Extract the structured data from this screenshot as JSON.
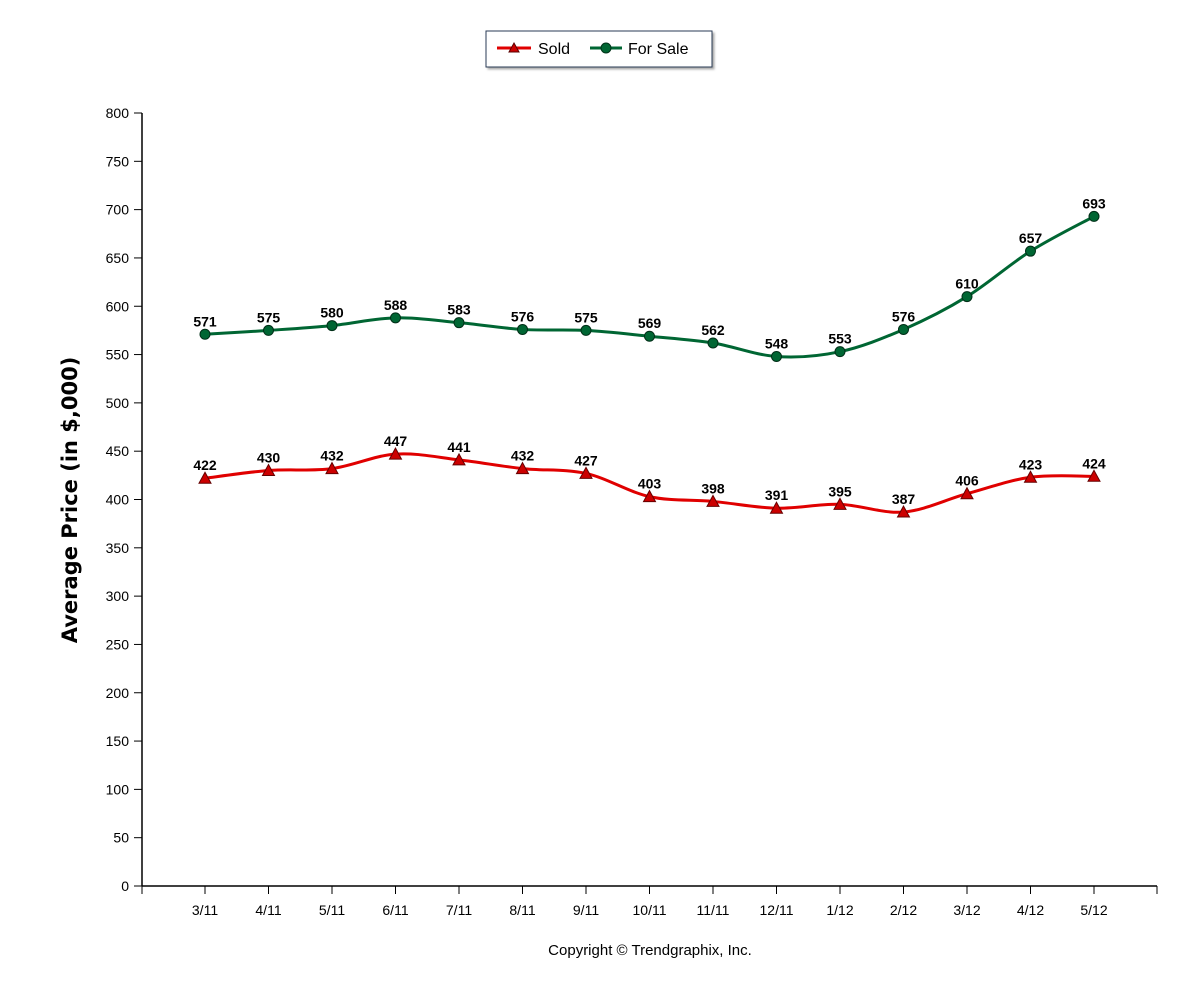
{
  "chart_data": {
    "type": "line",
    "categories": [
      "3/11",
      "4/11",
      "5/11",
      "6/11",
      "7/11",
      "8/11",
      "9/11",
      "10/11",
      "11/11",
      "12/11",
      "1/12",
      "2/12",
      "3/12",
      "4/12",
      "5/12"
    ],
    "series": [
      {
        "name": "Sold",
        "color": "#e00000",
        "marker": "triangle",
        "values": [
          422,
          430,
          432,
          447,
          441,
          432,
          427,
          403,
          398,
          391,
          395,
          387,
          406,
          423,
          424
        ]
      },
      {
        "name": "For Sale",
        "color": "#006633",
        "marker": "circle",
        "values": [
          571,
          575,
          580,
          588,
          583,
          576,
          575,
          569,
          562,
          548,
          553,
          576,
          610,
          657,
          693
        ]
      }
    ],
    "ylabel": "Average Price (in $,000)",
    "ylim": [
      0,
      800
    ],
    "ytick_step": 50,
    "legend_position": "top-center",
    "grid": false
  },
  "footer": {
    "copyright": "Copyright © Trendgraphix, Inc."
  }
}
